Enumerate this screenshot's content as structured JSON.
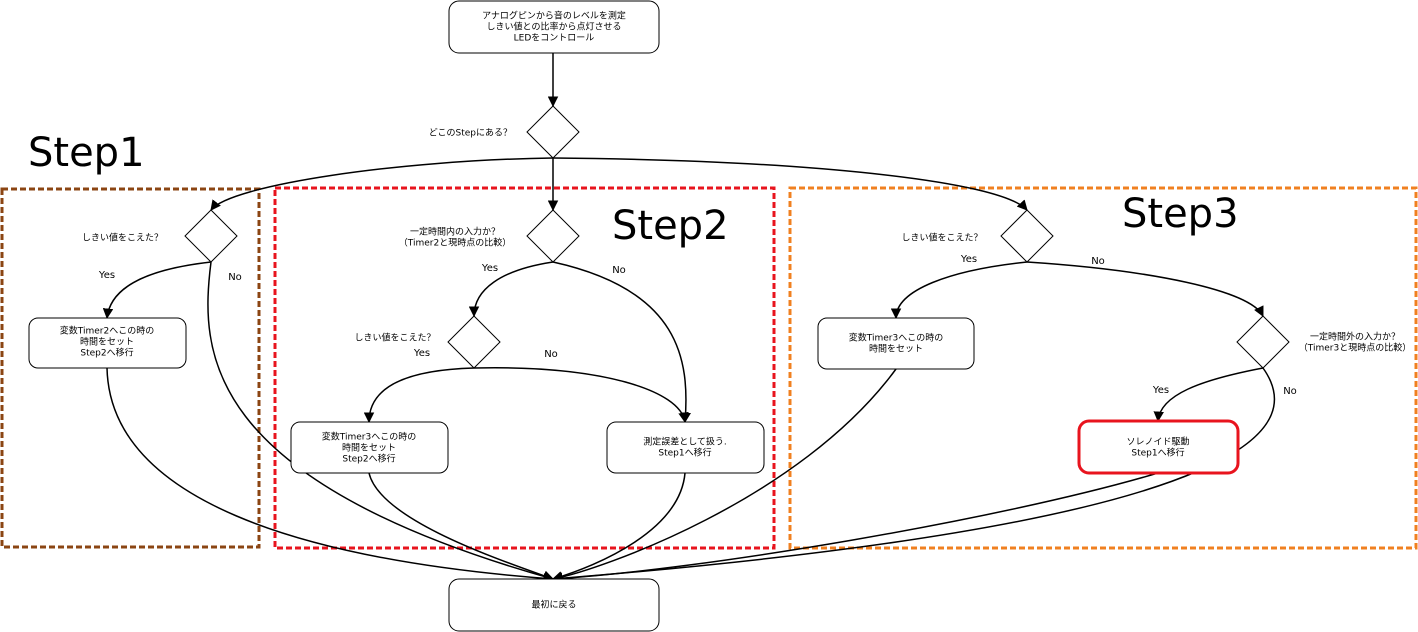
{
  "start": {
    "lines": [
      "アナログピンから音のレベルを測定",
      "しきい値との比率から点灯させる",
      "LEDをコントロール"
    ]
  },
  "branch": {
    "question": "どこのStepにある？"
  },
  "step1": {
    "label": "Step1",
    "question": "しきい値をこえた？",
    "yes": "Yes",
    "no": "No",
    "action": [
      "変数Timer2へこの時の",
      "時間をセット",
      "Step2へ移行"
    ]
  },
  "step2": {
    "label": "Step2",
    "question": [
      "一定時間内の入力か？",
      "（Timer2と現時点の比較）"
    ],
    "yes": "Yes",
    "no": "No",
    "threshold": {
      "question": "しきい値をこえた？",
      "yes": "Yes",
      "no": "No"
    },
    "action_yes": [
      "変数Timer3へこの時の",
      "時間をセット",
      "Step2へ移行"
    ],
    "action_no": [
      "測定誤差として扱う.",
      "Step1へ移行"
    ]
  },
  "step3": {
    "label": "Step3",
    "question": "しきい値をこえた？",
    "yes": "Yes",
    "no": "No",
    "action_yes": [
      "変数Timer3へこの時の",
      "時間をセット"
    ],
    "timeout": {
      "question": [
        "一定時間外の入力か？",
        "（Timer3と現時点の比較）"
      ],
      "yes": "Yes",
      "no": "No"
    },
    "solenoid": [
      "ソレノイド駆動",
      "Step1へ移行"
    ]
  },
  "end": {
    "label": "最初に戻る"
  }
}
